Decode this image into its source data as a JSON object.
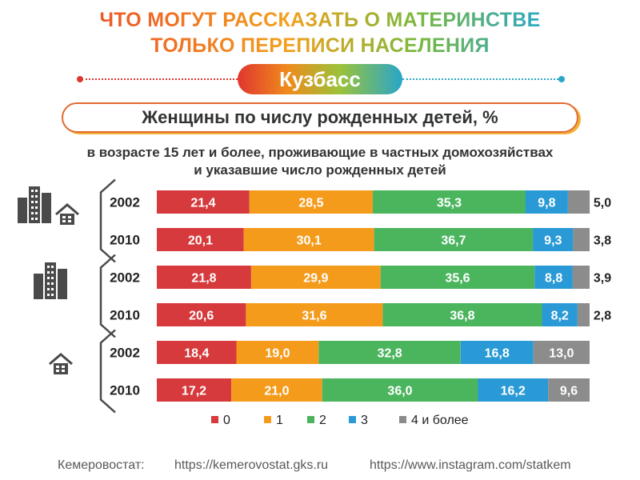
{
  "header": {
    "title_line1": "ЧТО МОГУТ РАССКАЗАТЬ О МАТЕРИНСТВЕ",
    "title_line2": "ТОЛЬКО ПЕРЕПИСИ НАСЕЛЕНИЯ",
    "region": "Кузбасс",
    "chart_title": "Женщины по числу рожденных детей, %",
    "note_line1": "в возрасте 15 лет и более, проживающие в частных домохозяйствах",
    "note_line2": "и указавшие число рожденных детей"
  },
  "colors": {
    "0": "#d63a3c",
    "1": "#f59b1c",
    "2": "#4bb55e",
    "3": "#2a9ad6",
    "4 и более": "#8c8c8c",
    "group_bracket": "#4a4a4a",
    "icon": "#4a4a4a"
  },
  "groups": [
    {
      "icons": [
        "city-icon",
        "house-icon"
      ]
    },
    {
      "icons": [
        "city-icon"
      ]
    },
    {
      "icons": [
        "house-icon"
      ]
    }
  ],
  "chart_data": {
    "type": "bar",
    "orientation": "horizontal",
    "stacked": "100%",
    "categories": [
      "2002",
      "2010",
      "2002",
      "2010",
      "2002",
      "2010"
    ],
    "series": [
      {
        "name": "0",
        "values": [
          21.4,
          20.1,
          21.8,
          20.6,
          18.4,
          17.2
        ],
        "labels": [
          "21,4",
          "20,1",
          "21,8",
          "20,6",
          "18,4",
          "17,2"
        ]
      },
      {
        "name": "1",
        "values": [
          28.5,
          30.1,
          29.9,
          31.6,
          19.0,
          21.0
        ],
        "labels": [
          "28,5",
          "30,1",
          "29,9",
          "31,6",
          "19,0",
          "21,0"
        ]
      },
      {
        "name": "2",
        "values": [
          35.3,
          36.7,
          35.6,
          36.8,
          32.8,
          36.0
        ],
        "labels": [
          "35,3",
          "36,7",
          "35,6",
          "36,8",
          "32,8",
          "36,0"
        ]
      },
      {
        "name": "3",
        "values": [
          9.8,
          9.3,
          8.8,
          8.2,
          16.8,
          16.2
        ],
        "labels": [
          "9,8",
          "9,3",
          "8,8",
          "8,2",
          "16,8",
          "16,2"
        ]
      },
      {
        "name": "4 и более",
        "values": [
          5.0,
          3.8,
          3.9,
          2.8,
          13.0,
          9.6
        ],
        "labels": [
          "5,0",
          "3,8",
          "3,9",
          "2,8",
          "13,0",
          "9,6"
        ]
      }
    ],
    "legend": "bottom"
  },
  "footer": {
    "source": "Кемеровостат:",
    "site": "https://kemerovostat.gks.ru",
    "instagram": "https://www.instagram.com/statkem"
  }
}
